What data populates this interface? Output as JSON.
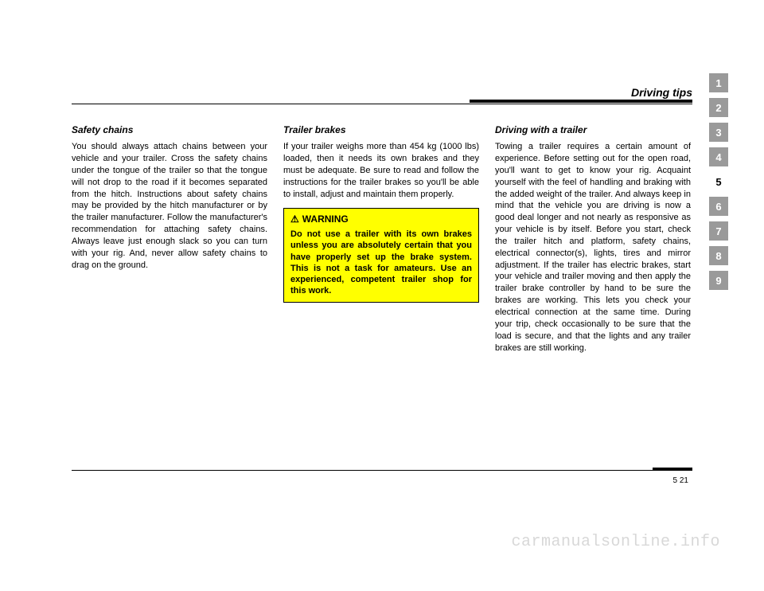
{
  "header": {
    "section_title": "Driving tips"
  },
  "columns": {
    "left": {
      "heading": "Safety chains",
      "body": "You should always attach chains between your vehicle and your trailer. Cross the safety chains under the tongue of the trailer so that the tongue will not drop to the road if it becomes separated from the hitch. Instructions about safety chains may be provided by the hitch manufacturer or by the trailer manufacturer. Follow the manufacturer's recommendation for attaching safety chains. Always leave just enough slack so you can turn with your rig. And, never allow safety chains to drag on the ground."
    },
    "middle": {
      "heading": "Trailer brakes",
      "body": "If your trailer weighs more than 454 kg (1000 lbs) loaded, then it needs its own brakes and they must be adequate. Be sure to read and follow the instructions for the trailer brakes so you'll be able to install, adjust and maintain them properly.",
      "warning": {
        "label": "WARNING",
        "text": "Do not use a trailer with its own brakes unless you are absolutely certain that you have properly set up the brake system. This is not a task for amateurs. Use an experienced, competent trailer shop for this work."
      }
    },
    "right": {
      "heading": "Driving with a trailer",
      "body": "Towing a trailer requires a certain amount of experience. Before setting out for the open road, you'll want to get to know your rig. Acquaint yourself with the feel of handling and braking with the added weight of the trailer. And always keep in mind that the vehicle you are driving is now a good deal longer and not nearly as responsive as your vehicle is by itself. Before you start, check the trailer hitch and platform, safety chains, electrical connector(s), lights, tires and mirror adjustment. If the trailer has electric brakes, start your vehicle and trailer moving and then apply the trailer brake controller by hand to be sure the brakes are working. This lets you check your electrical connection at the same time. During your trip, check occasionally to be sure that the load is secure, and that the lights and any trailer brakes are still working."
    }
  },
  "tabs": {
    "items": [
      "1",
      "2",
      "3",
      "4",
      "5",
      "6",
      "7",
      "8",
      "9"
    ],
    "active_index": 4,
    "grey_color": "#9a9a9a",
    "active_bg": "#ffffff"
  },
  "footer": {
    "page_number": "5 21"
  },
  "watermark": "carmanualsonline.info",
  "warning_box": {
    "background": "#ffff00",
    "border": "#000000"
  }
}
